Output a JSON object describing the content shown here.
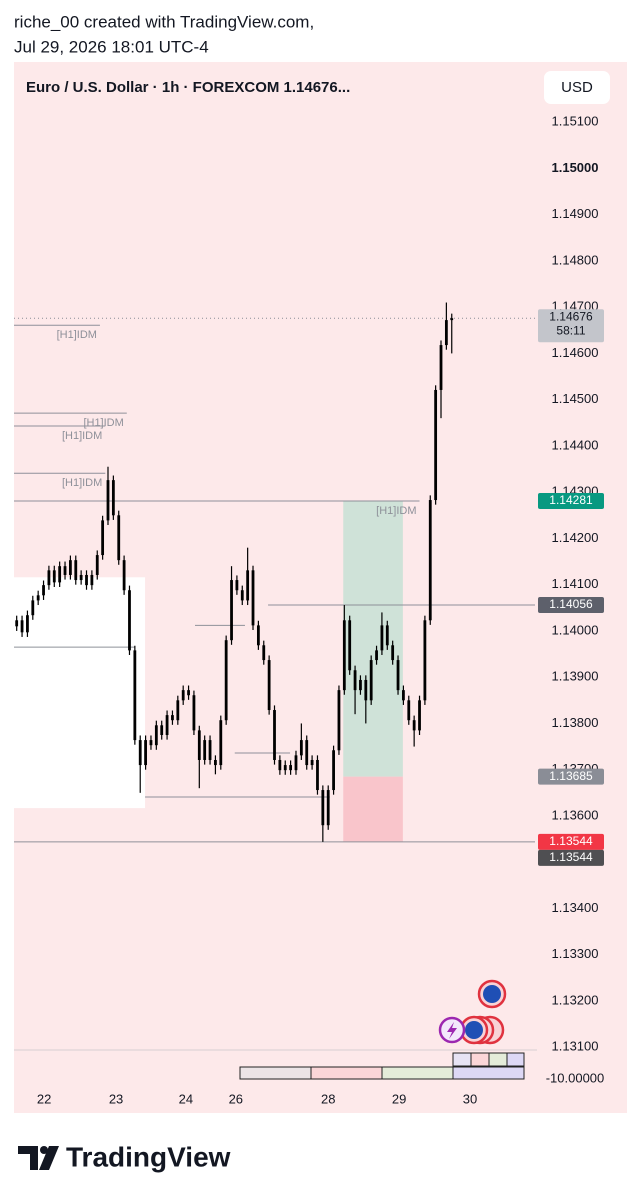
{
  "header": {
    "line1": "riche_00 created with TradingView.com,",
    "line2": "Jul 29, 2026 18:01 UTC-4"
  },
  "chart_data": {
    "type": "candlestick",
    "title": "Euro / U.S. Dollar · 1h · FOREXCOM  1.14676...",
    "currency_button": "USD",
    "color": "#000000",
    "x": [
      0,
      1,
      2,
      3,
      4,
      5,
      6,
      7,
      8,
      9,
      10,
      11,
      12,
      13,
      14,
      15,
      16,
      17,
      18,
      19,
      20,
      21,
      22,
      23,
      24,
      25,
      26,
      27,
      28,
      29,
      30,
      31,
      32,
      33,
      34,
      35,
      36,
      37,
      38,
      39,
      40,
      41,
      42,
      43,
      44,
      45,
      46,
      47,
      48,
      49,
      50,
      51,
      52,
      53,
      54,
      55,
      56,
      57,
      58,
      59,
      60,
      61,
      62,
      63,
      64,
      65,
      66,
      67,
      68,
      69,
      70,
      71,
      72,
      73,
      74,
      75,
      76,
      77,
      78,
      79,
      80,
      81
    ],
    "open": [
      1.1401,
      1.14023,
      1.13997,
      1.14034,
      1.14066,
      1.14077,
      1.14099,
      1.14131,
      1.14105,
      1.1414,
      1.14121,
      1.14153,
      1.1411,
      1.14121,
      1.14099,
      1.14121,
      1.14164,
      1.14239,
      1.14326,
      1.1425,
      1.14153,
      1.14088,
      1.13958,
      1.13764,
      1.1371,
      1.13764,
      1.13753,
      1.13796,
      1.13775,
      1.13818,
      1.13807,
      1.1385,
      1.13872,
      1.13861,
      1.13785,
      1.13721,
      1.13764,
      1.13721,
      1.1371,
      1.13807,
      1.1398,
      1.1411,
      1.14088,
      1.14066,
      1.14131,
      1.14012,
      1.13969,
      1.13937,
      1.13829,
      1.13721,
      1.13699,
      1.1371,
      1.13699,
      1.13731,
      1.13764,
      1.1371,
      1.13721,
      1.13656,
      1.1358,
      1.13656,
      1.13742,
      1.13872,
      1.14023,
      1.13915,
      1.13872,
      1.13894,
      1.1385,
      1.13937,
      1.13958,
      1.14012,
      1.13969,
      1.13937,
      1.13872,
      1.1385,
      1.13807,
      1.13785,
      1.1385,
      1.14023,
      1.14283,
      1.14521,
      1.14618,
      1.14672
    ],
    "high": [
      1.14033,
      1.14033,
      1.14044,
      1.14076,
      1.14087,
      1.14109,
      1.14141,
      1.14141,
      1.1415,
      1.1415,
      1.14163,
      1.14163,
      1.14131,
      1.14131,
      1.14131,
      1.14174,
      1.14249,
      1.14355,
      1.14336,
      1.1426,
      1.14163,
      1.14098,
      1.13968,
      1.13774,
      1.13774,
      1.13774,
      1.13806,
      1.13806,
      1.13828,
      1.13828,
      1.1386,
      1.13882,
      1.13882,
      1.13871,
      1.13795,
      1.13774,
      1.13774,
      1.13731,
      1.13817,
      1.1399,
      1.1414,
      1.1412,
      1.14098,
      1.1418,
      1.14141,
      1.14022,
      1.13979,
      1.13947,
      1.13839,
      1.13731,
      1.1372,
      1.1372,
      1.13741,
      1.138,
      1.13774,
      1.13731,
      1.13731,
      1.13666,
      1.13666,
      1.13752,
      1.13882,
      1.14056,
      1.14033,
      1.13925,
      1.13904,
      1.13904,
      1.13947,
      1.13968,
      1.1404,
      1.14022,
      1.13979,
      1.13947,
      1.13882,
      1.1386,
      1.13817,
      1.1386,
      1.14033,
      1.14293,
      1.14531,
      1.14628,
      1.1471,
      1.14686
    ],
    "low": [
      1.14,
      1.13987,
      1.13987,
      1.14024,
      1.14056,
      1.14067,
      1.14089,
      1.14095,
      1.14095,
      1.14111,
      1.14111,
      1.141,
      1.141,
      1.14089,
      1.14089,
      1.14111,
      1.14154,
      1.14229,
      1.1424,
      1.14143,
      1.14078,
      1.13948,
      1.13754,
      1.1365,
      1.137,
      1.13743,
      1.13743,
      1.13765,
      1.13765,
      1.13797,
      1.13797,
      1.1384,
      1.13851,
      1.13775,
      1.1366,
      1.13711,
      1.13711,
      1.1369,
      1.137,
      1.13797,
      1.1397,
      1.14078,
      1.14056,
      1.14056,
      1.14002,
      1.13959,
      1.13927,
      1.13819,
      1.13711,
      1.13689,
      1.13689,
      1.13689,
      1.13689,
      1.13721,
      1.137,
      1.137,
      1.13646,
      1.13544,
      1.1357,
      1.13646,
      1.13732,
      1.13862,
      1.13905,
      1.1382,
      1.13862,
      1.138,
      1.1384,
      1.13927,
      1.13948,
      1.13959,
      1.13927,
      1.13862,
      1.1384,
      1.13797,
      1.1375,
      1.13775,
      1.1384,
      1.14013,
      1.14273,
      1.1446,
      1.14608,
      1.146
    ],
    "close": [
      1.14023,
      1.13997,
      1.14034,
      1.14066,
      1.14077,
      1.14099,
      1.14131,
      1.14105,
      1.1414,
      1.14121,
      1.14153,
      1.1411,
      1.14121,
      1.14099,
      1.14121,
      1.14164,
      1.14239,
      1.14326,
      1.1425,
      1.14153,
      1.14088,
      1.13958,
      1.13764,
      1.1371,
      1.13764,
      1.13753,
      1.13796,
      1.13775,
      1.13818,
      1.13807,
      1.1385,
      1.13872,
      1.13861,
      1.13785,
      1.13721,
      1.13764,
      1.13721,
      1.1371,
      1.13807,
      1.1398,
      1.1411,
      1.14088,
      1.14066,
      1.14131,
      1.14012,
      1.13969,
      1.13937,
      1.13829,
      1.13721,
      1.13699,
      1.1371,
      1.13699,
      1.13731,
      1.13764,
      1.1371,
      1.13721,
      1.13656,
      1.1358,
      1.13656,
      1.13742,
      1.13872,
      1.14023,
      1.13915,
      1.13872,
      1.13894,
      1.1385,
      1.13937,
      1.13958,
      1.14012,
      1.13969,
      1.13937,
      1.13872,
      1.1385,
      1.13807,
      1.13785,
      1.1385,
      1.14023,
      1.14283,
      1.14521,
      1.14618,
      1.14672,
      1.14676
    ],
    "xlim": [
      -0.5,
      96.5
    ],
    "ylim": [
      1.13094,
      1.1523
    ],
    "xticks": [
      {
        "value": 5.1,
        "label": "22"
      },
      {
        "value": 18.5,
        "label": "23"
      },
      {
        "value": 31.5,
        "label": "24"
      },
      {
        "value": 40.8,
        "label": "26"
      },
      {
        "value": 58,
        "label": "28"
      },
      {
        "value": 71.2,
        "label": "29"
      },
      {
        "value": 84.4,
        "label": "30"
      }
    ],
    "yticks": [
      {
        "value": 1.151,
        "label": "1.15100"
      },
      {
        "value": 1.15,
        "label": "1.15000"
      },
      {
        "value": 1.149,
        "label": "1.14900"
      },
      {
        "value": 1.148,
        "label": "1.14800"
      },
      {
        "value": 1.147,
        "label": "1.14700"
      },
      {
        "value": 1.146,
        "label": "1.14600"
      },
      {
        "value": 1.145,
        "label": "1.14500"
      },
      {
        "value": 1.144,
        "label": "1.14400"
      },
      {
        "value": 1.143,
        "label": "1.14300"
      },
      {
        "value": 1.142,
        "label": "1.14200"
      },
      {
        "value": 1.141,
        "label": "1.14100"
      },
      {
        "value": 1.14,
        "label": "1.14000"
      },
      {
        "value": 1.139,
        "label": "1.13900"
      },
      {
        "value": 1.138,
        "label": "1.13800"
      },
      {
        "value": 1.137,
        "label": "1.13700"
      },
      {
        "value": 1.136,
        "label": "1.13600"
      },
      {
        "value": 1.135,
        "label": "1.13500"
      },
      {
        "value": 1.134,
        "label": "1.13400"
      },
      {
        "value": 1.133,
        "label": "1.13300"
      },
      {
        "value": 1.132,
        "label": "1.13200"
      },
      {
        "value": 1.131,
        "label": "1.13100"
      }
    ],
    "grid": false,
    "last_price": 1.14676,
    "last_price_color": "#c3c5cb",
    "countdown": "58:11",
    "price_tags": [
      {
        "value": 1.14281,
        "color": "#089981"
      },
      {
        "value": 1.14056,
        "color": "#5d606b"
      },
      {
        "value": 1.13685,
        "color": "#8a8d96"
      },
      {
        "value": 1.13544,
        "color": "#f23645"
      },
      {
        "value": 1.13544,
        "color": "#4f4f52"
      }
    ],
    "level_color": "#8e9099",
    "levels": [
      {
        "value": 1.14661,
        "from": -0.5,
        "to": 15.5,
        "label": "[H1]IDM"
      },
      {
        "value": 1.14471,
        "from": -0.5,
        "to": 20.5,
        "label": "[H1]IDM"
      },
      {
        "value": 1.14443,
        "from": -0.5,
        "to": 16.5,
        "label": "[H1]IDM"
      },
      {
        "value": 1.14341,
        "from": -0.5,
        "to": 16.5,
        "label": "[H1]IDM"
      },
      {
        "value": 1.14281,
        "from": -0.5,
        "to": 75,
        "label": "[H1]IDM"
      },
      {
        "value": 1.14056,
        "from": 46.8,
        "to": 96.5
      },
      {
        "value": 1.14012,
        "from": 33.2,
        "to": 42.5
      },
      {
        "value": 1.13965,
        "from": -0.5,
        "to": 22
      },
      {
        "value": 1.13736,
        "from": 40.6,
        "to": 50.9
      },
      {
        "value": 1.13641,
        "from": 23.9,
        "to": 58.3
      },
      {
        "value": 1.13544,
        "from": -0.5,
        "to": 96.5
      }
    ],
    "zones": [
      {
        "top": 1.14116,
        "bottom": 1.13617,
        "from": -0.5,
        "to": 23.9,
        "color": "#ffffff"
      }
    ],
    "position": {
      "from": 60.8,
      "to": 71.9,
      "target": 1.14281,
      "entry": 1.13685,
      "stop": 1.13544,
      "profit_color": "#cfe2d8",
      "loss_color": "#f9c5cb"
    },
    "indicator_label": "-10.00000"
  },
  "footer": {
    "brand": "TradingView"
  }
}
